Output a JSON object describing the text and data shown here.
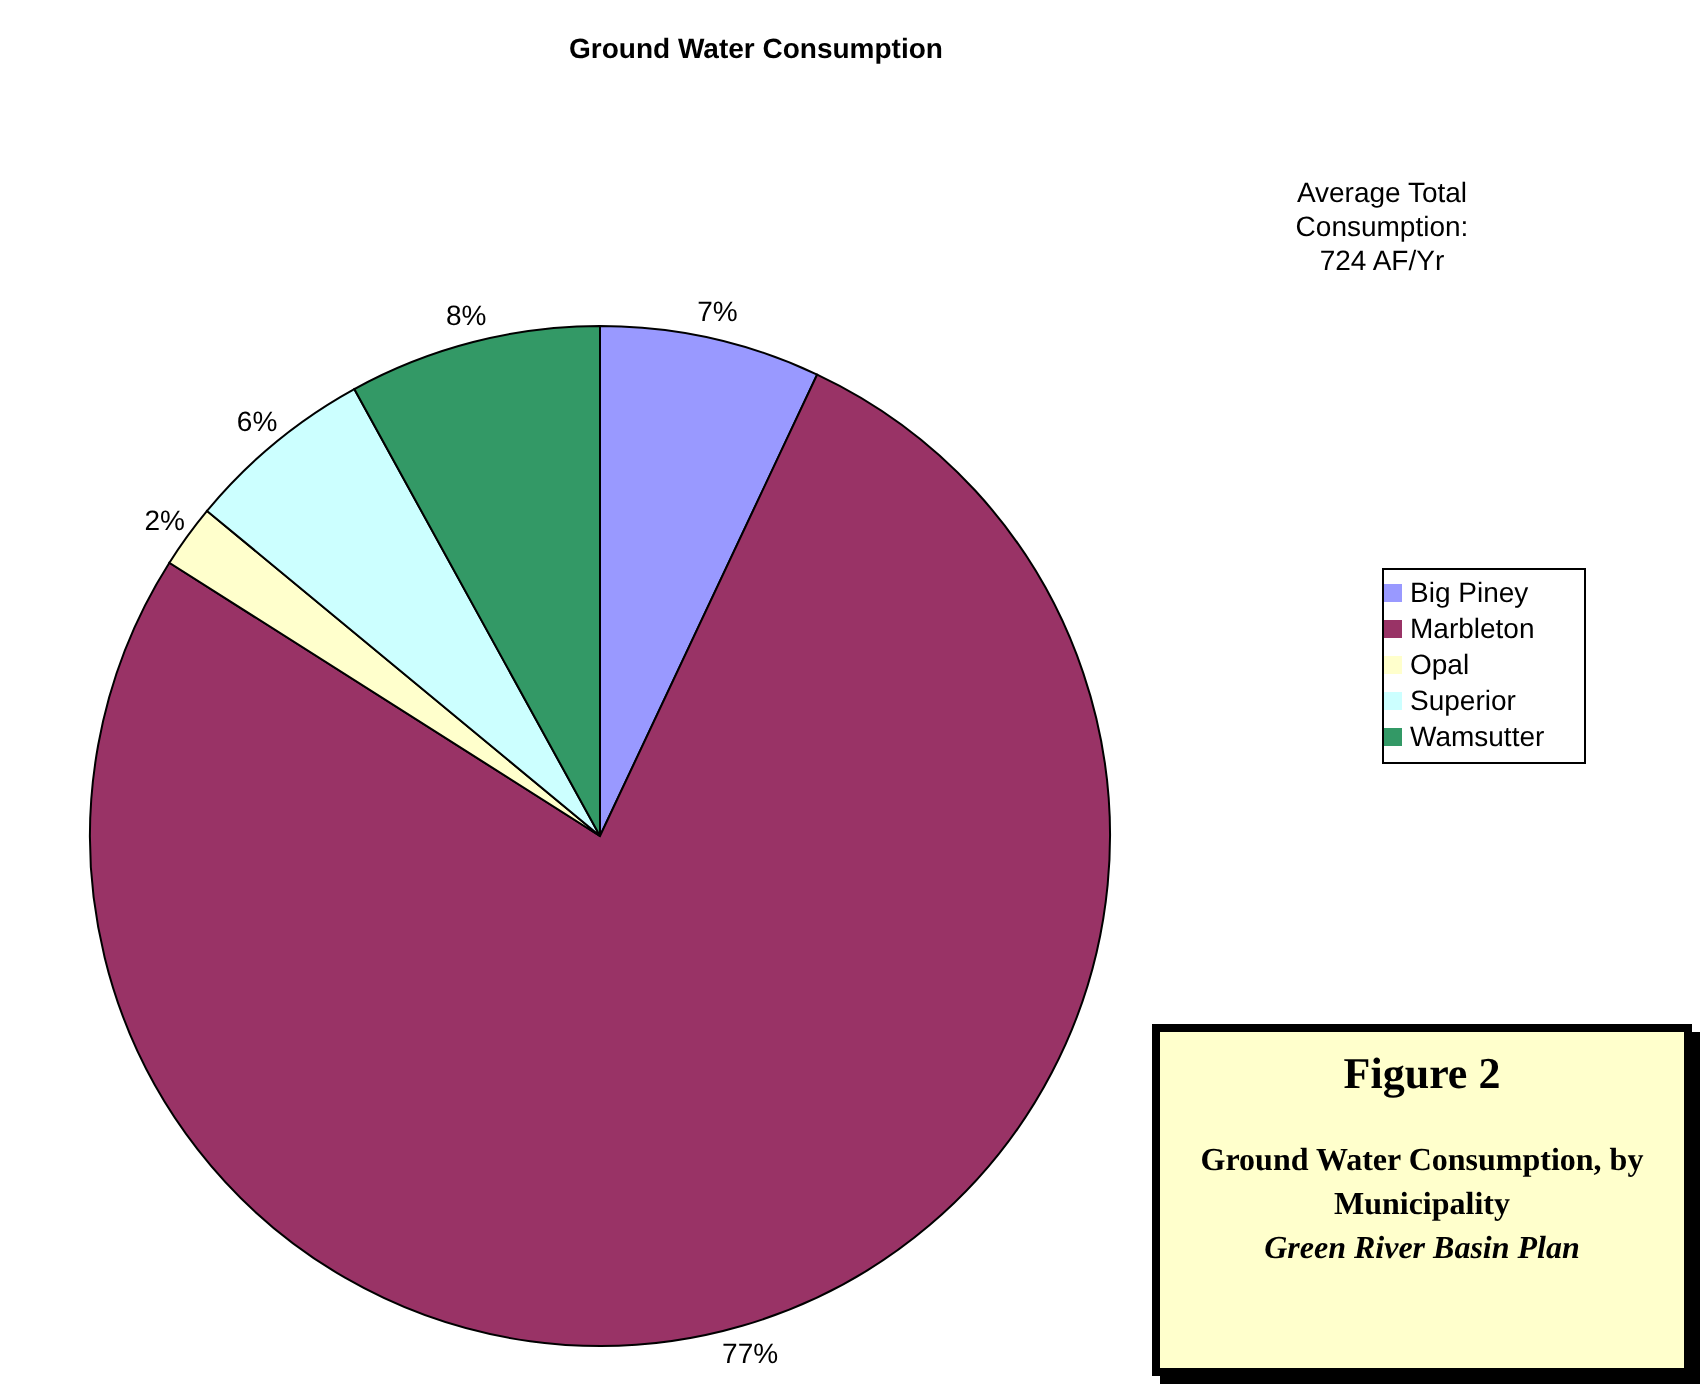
{
  "chart_data": {
    "type": "pie",
    "title": "Ground Water Consumption",
    "categories": [
      "Big Piney",
      "Marbleton",
      "Opal",
      "Superior",
      "Wamsutter"
    ],
    "values": [
      7,
      77,
      2,
      6,
      8
    ],
    "value_labels": [
      "7%",
      "77%",
      "2%",
      "6%",
      "8%"
    ],
    "colors": [
      "#9999ff",
      "#993366",
      "#ffffcc",
      "#ccffff",
      "#339966"
    ],
    "legend": "right",
    "annotations": [
      "Average Total Consumption: 724 AF/Yr",
      "Figure 2",
      "Ground Water Consumption, by Municipality",
      "Green River Basin Plan"
    ]
  }
}
